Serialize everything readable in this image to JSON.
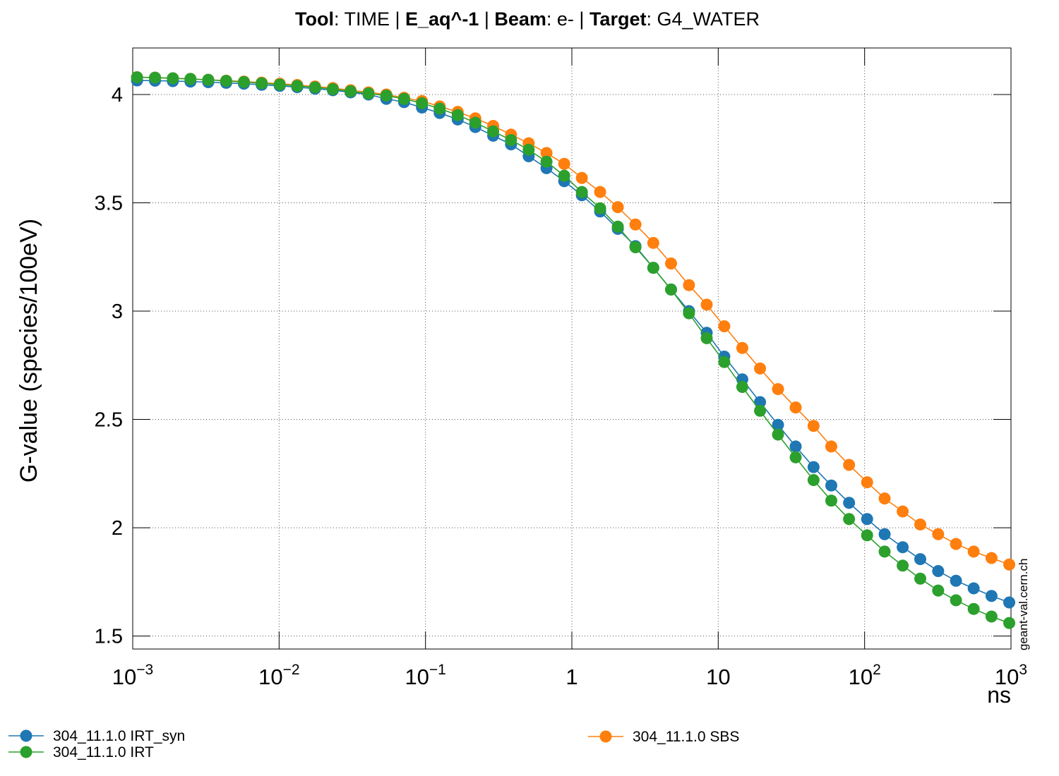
{
  "chart_data": {
    "type": "line",
    "title": [
      {
        "text": "Tool",
        "bold": true
      },
      {
        "text": ": TIME | "
      },
      {
        "text": "E_aq^-1",
        "bold": true
      },
      {
        "text": " | "
      },
      {
        "text": "Beam",
        "bold": true
      },
      {
        "text": ": e- | "
      },
      {
        "text": "Target",
        "bold": true
      },
      {
        "text": ": G4_WATER"
      }
    ],
    "x_label": "ns",
    "y_label": "G-value (species/100eV)",
    "watermark": "geant-val.cern.ch",
    "xscale": "log",
    "xlim": [
      0.001,
      1000
    ],
    "ylim": [
      1.44,
      4.215
    ],
    "xticks": [
      {
        "value": 0.001,
        "label": "10",
        "exponent": "−3"
      },
      {
        "value": 0.01,
        "label": "10",
        "exponent": "−2"
      },
      {
        "value": 0.1,
        "label": "10",
        "exponent": "−1"
      },
      1,
      10,
      {
        "value": 100,
        "label": "10",
        "exponent": "2"
      },
      {
        "value": 1000,
        "label": "10",
        "exponent": "3"
      }
    ],
    "yticks": [
      1.5,
      2,
      2.5,
      3,
      3.5,
      4
    ],
    "grid": true,
    "x": [
      0.00107,
      0.00142,
      0.00188,
      0.00248,
      0.00328,
      0.00435,
      0.00575,
      0.0076,
      0.0101,
      0.0133,
      0.0176,
      0.0233,
      0.0308,
      0.0408,
      0.054,
      0.0714,
      0.0946,
      0.125,
      0.166,
      0.219,
      0.29,
      0.384,
      0.507,
      0.671,
      0.887,
      1.17,
      1.56,
      2.06,
      2.72,
      3.6,
      4.76,
      6.31,
      8.34,
      11.0,
      14.6,
      19.3,
      25.6,
      33.8,
      44.8,
      59.2,
      78.3,
      104,
      137,
      182,
      240,
      318,
      421,
      556,
      736,
      973
    ],
    "series": [
      {
        "name": "304_11.1.0 IRT_syn",
        "color": "#1f77b4",
        "legend": "left",
        "values": [
          4.065,
          4.064,
          4.062,
          4.06,
          4.057,
          4.054,
          4.05,
          4.045,
          4.04,
          4.034,
          4.027,
          4.02,
          4.01,
          4.0,
          3.98,
          3.965,
          3.94,
          3.915,
          3.885,
          3.85,
          3.81,
          3.77,
          3.715,
          3.66,
          3.6,
          3.535,
          3.46,
          3.38,
          3.3,
          3.2,
          3.1,
          3.0,
          2.9,
          2.79,
          2.685,
          2.58,
          2.475,
          2.375,
          2.28,
          2.195,
          2.115,
          2.04,
          1.97,
          1.91,
          1.855,
          1.8,
          1.755,
          1.72,
          1.685,
          1.655
        ]
      },
      {
        "name": "304_11.1.0 IRT",
        "color": "#2ca02c",
        "legend": "left",
        "values": [
          4.08,
          4.078,
          4.075,
          4.072,
          4.068,
          4.063,
          4.058,
          4.052,
          4.046,
          4.04,
          4.033,
          4.025,
          4.015,
          4.005,
          3.995,
          3.98,
          3.96,
          3.935,
          3.905,
          3.87,
          3.83,
          3.79,
          3.745,
          3.69,
          3.625,
          3.55,
          3.475,
          3.39,
          3.295,
          3.2,
          3.1,
          2.99,
          2.875,
          2.765,
          2.65,
          2.54,
          2.43,
          2.325,
          2.22,
          2.125,
          2.04,
          1.965,
          1.89,
          1.825,
          1.765,
          1.71,
          1.665,
          1.625,
          1.59,
          1.56
        ]
      },
      {
        "name": "304_11.1.0 SBS",
        "color": "#ff7f0e",
        "legend": "right",
        "values": [
          4.08,
          4.078,
          4.075,
          4.072,
          4.068,
          4.064,
          4.06,
          4.055,
          4.05,
          4.044,
          4.037,
          4.03,
          4.02,
          4.01,
          4.0,
          3.985,
          3.97,
          3.945,
          3.92,
          3.89,
          3.855,
          3.815,
          3.775,
          3.73,
          3.68,
          3.615,
          3.55,
          3.48,
          3.4,
          3.315,
          3.22,
          3.12,
          3.03,
          2.93,
          2.83,
          2.735,
          2.64,
          2.555,
          2.47,
          2.375,
          2.29,
          2.21,
          2.135,
          2.075,
          2.015,
          1.97,
          1.925,
          1.89,
          1.86,
          1.83
        ]
      }
    ]
  }
}
